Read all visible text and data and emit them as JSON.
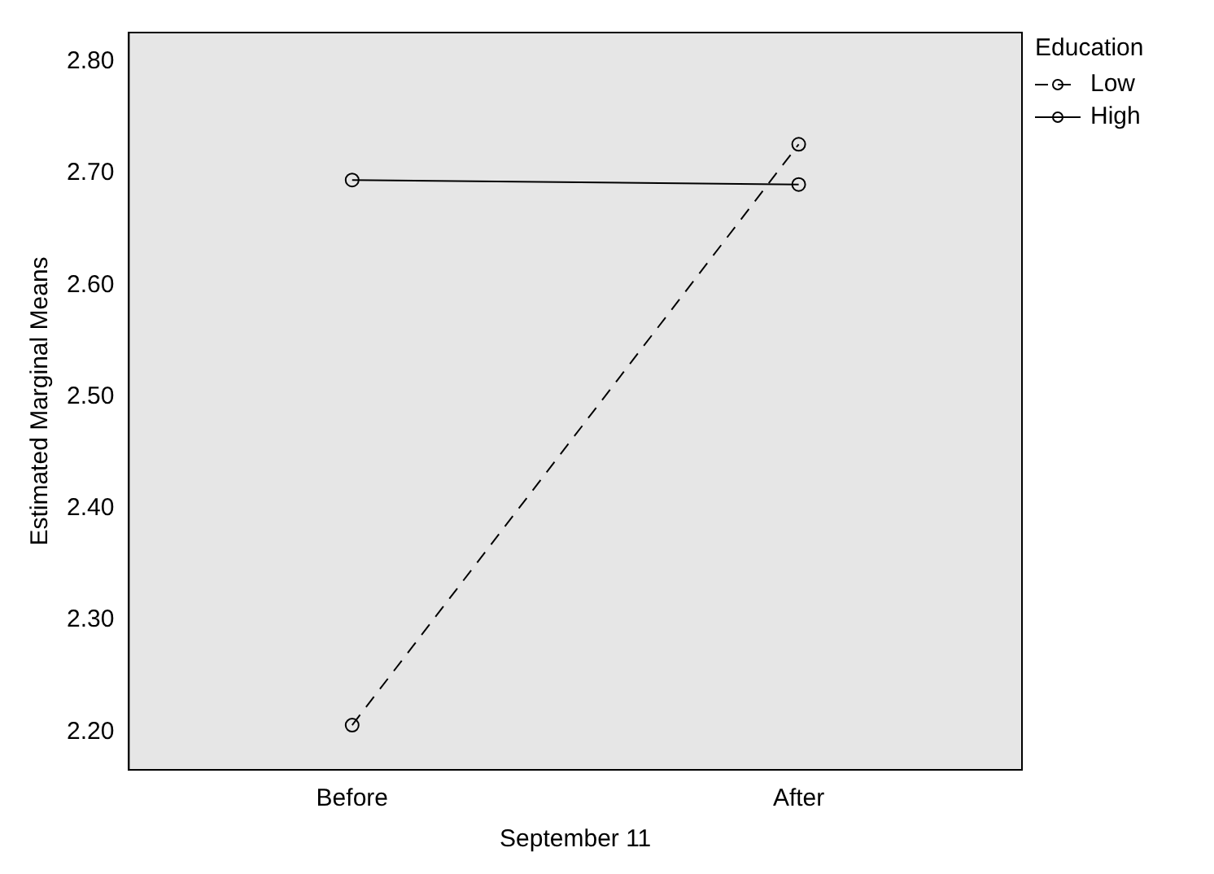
{
  "chart_data": {
    "type": "line",
    "xlabel": "September 11",
    "ylabel": "Estimated Marginal Means",
    "legend_title": "Education",
    "categories": [
      "Before",
      "After"
    ],
    "series": [
      {
        "name": "Low",
        "color": "#000000",
        "values": [
          2.206,
          2.726
        ],
        "line_style": "dashed"
      },
      {
        "name": "High",
        "color": "#000000",
        "values": [
          2.694,
          2.69
        ],
        "line_style": "solid"
      }
    ],
    "ylim": [
      2.166,
      2.826
    ],
    "yticks": [
      {
        "value": 2.2,
        "label": "2.20"
      },
      {
        "value": 2.3,
        "label": "2.30"
      },
      {
        "value": 2.4,
        "label": "2.40"
      },
      {
        "value": 2.5,
        "label": "2.50"
      },
      {
        "value": 2.6,
        "label": "2.60"
      },
      {
        "value": 2.7,
        "label": "2.70"
      },
      {
        "value": 2.8,
        "label": "2.80"
      }
    ],
    "grid": false,
    "legend": "top right",
    "marker": "circle"
  }
}
